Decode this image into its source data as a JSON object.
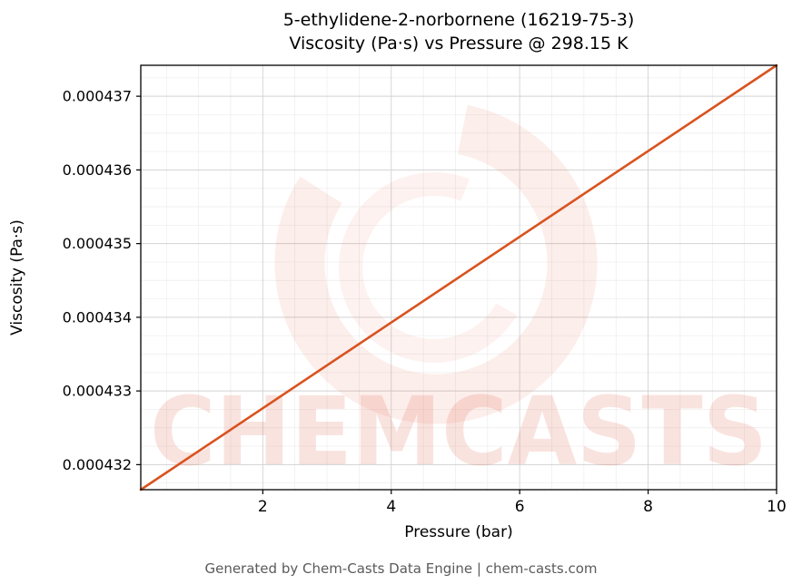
{
  "title": {
    "line1": "5-ethylidene-2-norbornene (16219-75-3)",
    "line2": "Viscosity (Pa·s) vs Pressure @ 298.15 K"
  },
  "footer": "Generated by Chem-Casts Data Engine | chem-casts.com",
  "watermark": {
    "text": "CHEMCASTS",
    "color": "#e0573e",
    "text_opacity": 0.16,
    "swirl_opacity": 0.1
  },
  "chart_data": {
    "type": "line",
    "title": "5-ethylidene-2-norbornene (16219-75-3) Viscosity (Pa·s) vs Pressure @ 298.15 K",
    "xlabel": "Pressure (bar)",
    "ylabel": "Viscosity (Pa·s)",
    "x": [
      0.1,
      10
    ],
    "y": [
      0.00043166,
      0.00043742
    ],
    "xlim": [
      0.1,
      10
    ],
    "ylim": [
      0.00043166,
      0.00043742
    ],
    "xticks": [
      2,
      4,
      6,
      8,
      10
    ],
    "xtick_labels": [
      "2",
      "4",
      "6",
      "8",
      "10"
    ],
    "yticks": [
      0.000432,
      0.000433,
      0.000434,
      0.000435,
      0.000436,
      0.000437
    ],
    "ytick_labels": [
      "0.000432",
      "0.000433",
      "0.000434",
      "0.000435",
      "0.000436",
      "0.000437"
    ],
    "x_minor_step": 0.5,
    "y_minor_step": 2.5e-07,
    "grid": true,
    "legend": false,
    "line_color": "#d9531f",
    "line_width": 2.6,
    "axis_color": "#000000",
    "grid_major_color": "#c8c8c8",
    "grid_minor_color": "#dedede",
    "tick_label_color": "#000000"
  }
}
